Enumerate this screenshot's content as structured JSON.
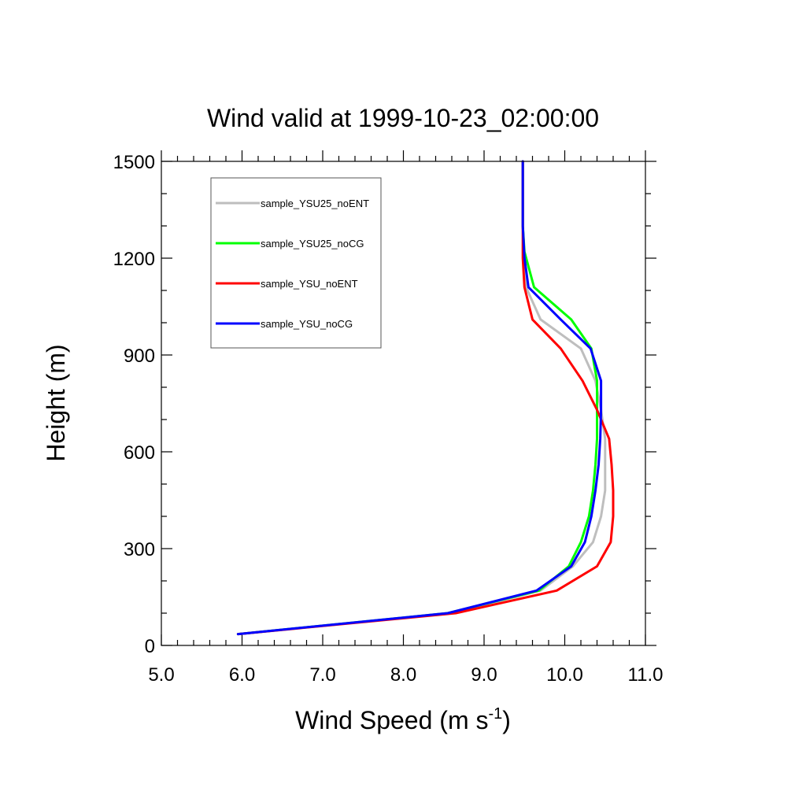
{
  "chart_data": {
    "type": "line",
    "title": "Wind valid at 1999-10-23_02:00:00",
    "xlabel": "Wind Speed (m s",
    "xlabel_superscript": "-1",
    "xlabel_suffix": ")",
    "ylabel": "Height (m)",
    "xlim": [
      5.0,
      11.0
    ],
    "ylim": [
      0,
      1500
    ],
    "x_major_ticks": [
      5.0,
      6.0,
      7.0,
      8.0,
      9.0,
      10.0,
      11.0
    ],
    "x_tick_labels": [
      "5.0",
      "6.0",
      "7.0",
      "8.0",
      "9.0",
      "10.0",
      "11.0"
    ],
    "x_minor_step": 0.2,
    "y_major_ticks": [
      0,
      300,
      600,
      900,
      1200,
      1500
    ],
    "y_tick_labels": [
      "0",
      "300",
      "600",
      "900",
      "1200",
      "1500"
    ],
    "y_minor_step": 100,
    "grid": false,
    "legend_position": "top-left",
    "series": [
      {
        "name": "sample_YSU25_noENT",
        "color": "#BEBEBE",
        "points": [
          [
            5.95,
            35
          ],
          [
            8.6,
            100
          ],
          [
            9.7,
            170
          ],
          [
            10.1,
            245
          ],
          [
            10.35,
            320
          ],
          [
            10.45,
            400
          ],
          [
            10.5,
            480
          ],
          [
            10.5,
            560
          ],
          [
            10.5,
            640
          ],
          [
            10.45,
            730
          ],
          [
            10.38,
            820
          ],
          [
            10.2,
            920
          ],
          [
            9.7,
            1010
          ],
          [
            9.52,
            1110
          ],
          [
            9.5,
            1200
          ],
          [
            9.48,
            1300
          ],
          [
            9.48,
            1400
          ],
          [
            9.48,
            1500
          ]
        ]
      },
      {
        "name": "sample_YSU25_noCG",
        "color": "#00FF00",
        "points": [
          [
            5.95,
            35
          ],
          [
            8.55,
            100
          ],
          [
            9.68,
            170
          ],
          [
            10.05,
            245
          ],
          [
            10.2,
            320
          ],
          [
            10.3,
            400
          ],
          [
            10.35,
            480
          ],
          [
            10.38,
            560
          ],
          [
            10.4,
            640
          ],
          [
            10.4,
            730
          ],
          [
            10.4,
            820
          ],
          [
            10.33,
            920
          ],
          [
            10.08,
            1010
          ],
          [
            9.62,
            1110
          ],
          [
            9.5,
            1220
          ],
          [
            9.48,
            1300
          ],
          [
            9.48,
            1400
          ],
          [
            9.48,
            1500
          ]
        ]
      },
      {
        "name": "sample_YSU_noENT",
        "color": "#FF0000",
        "points": [
          [
            5.95,
            35
          ],
          [
            8.65,
            100
          ],
          [
            9.9,
            170
          ],
          [
            10.4,
            245
          ],
          [
            10.57,
            320
          ],
          [
            10.6,
            400
          ],
          [
            10.6,
            480
          ],
          [
            10.58,
            560
          ],
          [
            10.55,
            640
          ],
          [
            10.4,
            730
          ],
          [
            10.22,
            820
          ],
          [
            9.95,
            920
          ],
          [
            9.6,
            1010
          ],
          [
            9.5,
            1110
          ],
          [
            9.48,
            1200
          ],
          [
            9.48,
            1300
          ],
          [
            9.48,
            1400
          ],
          [
            9.48,
            1500
          ]
        ]
      },
      {
        "name": "sample_YSU_noCG",
        "color": "#0000FF",
        "points": [
          [
            5.95,
            35
          ],
          [
            8.55,
            100
          ],
          [
            9.65,
            170
          ],
          [
            10.08,
            245
          ],
          [
            10.25,
            320
          ],
          [
            10.33,
            400
          ],
          [
            10.38,
            480
          ],
          [
            10.42,
            560
          ],
          [
            10.44,
            640
          ],
          [
            10.45,
            730
          ],
          [
            10.45,
            820
          ],
          [
            10.32,
            920
          ],
          [
            9.95,
            1010
          ],
          [
            9.55,
            1110
          ],
          [
            9.5,
            1200
          ],
          [
            9.48,
            1300
          ],
          [
            9.48,
            1400
          ],
          [
            9.48,
            1500
          ]
        ]
      }
    ]
  }
}
